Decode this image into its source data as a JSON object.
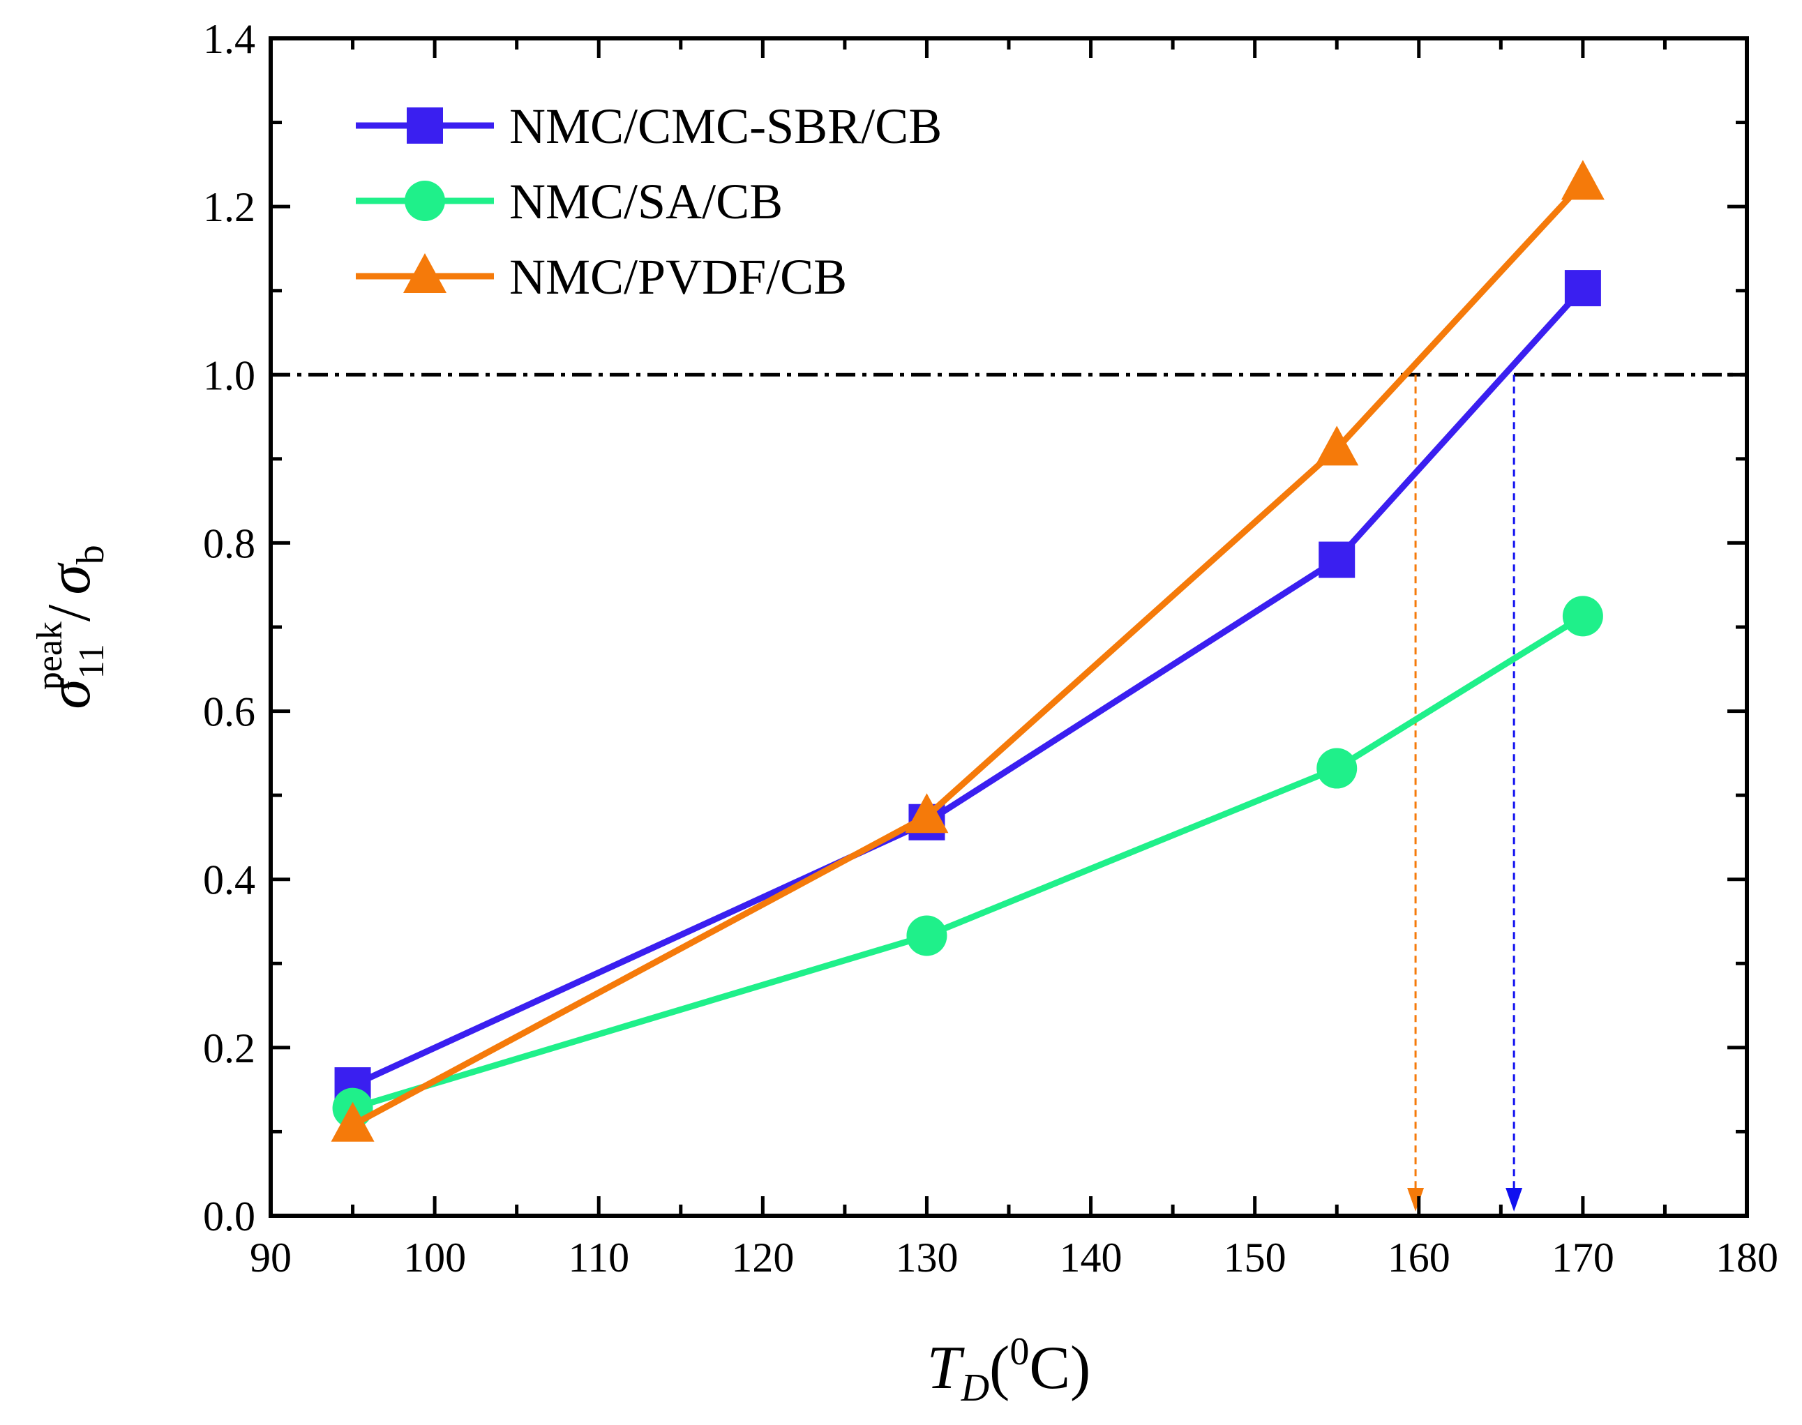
{
  "chart_data": {
    "type": "line",
    "xlabel": {
      "main": "T",
      "sub": "D",
      "open": "(",
      "sup": "0",
      "rest": "C)"
    },
    "ylabel": {
      "main": "σ",
      "sub": "11",
      "sup": "peak",
      "slash": "/",
      "main2": "σ",
      "sub2": "b"
    },
    "xlim": [
      90,
      180
    ],
    "ylim": [
      0,
      1.4
    ],
    "xticks": [
      90,
      100,
      110,
      120,
      130,
      140,
      150,
      160,
      170,
      180
    ],
    "xtick_labels": [
      "90",
      "100",
      "110",
      "120",
      "130",
      "140",
      "150",
      "160",
      "170",
      "180"
    ],
    "yticks": [
      0,
      0.2,
      0.4,
      0.6,
      0.8,
      1.0,
      1.2,
      1.4
    ],
    "ytick_labels": [
      "0.0",
      "0.2",
      "0.4",
      "0.6",
      "0.8",
      "1.0",
      "1.2",
      "1.4"
    ],
    "legend_position": "top-left",
    "series": [
      {
        "name": "NMC/CMC-SBR/CB",
        "color": "#3A1FF0",
        "marker": "square",
        "x": [
          95,
          130,
          155,
          170
        ],
        "y": [
          0.155,
          0.468,
          0.78,
          1.103
        ]
      },
      {
        "name": "NMC/SA/CB",
        "color": "#1FF08A",
        "marker": "circle",
        "x": [
          95,
          130,
          155,
          170
        ],
        "y": [
          0.128,
          0.333,
          0.532,
          0.713
        ]
      },
      {
        "name": "NMC/PVDF/CB",
        "color": "#F57A0A",
        "marker": "triangle",
        "x": [
          95,
          130,
          155,
          170
        ],
        "y": [
          0.108,
          0.475,
          0.912,
          1.228
        ]
      }
    ],
    "reference_line": {
      "y": 1.0,
      "style": "dash-dot",
      "color": "#000000"
    },
    "indicators": [
      {
        "x": 159.8,
        "color": "#F57A0A",
        "series": "NMC/PVDF/CB"
      },
      {
        "x": 165.8,
        "color": "#1010F0",
        "series": "NMC/CMC-SBR/CB"
      }
    ]
  }
}
